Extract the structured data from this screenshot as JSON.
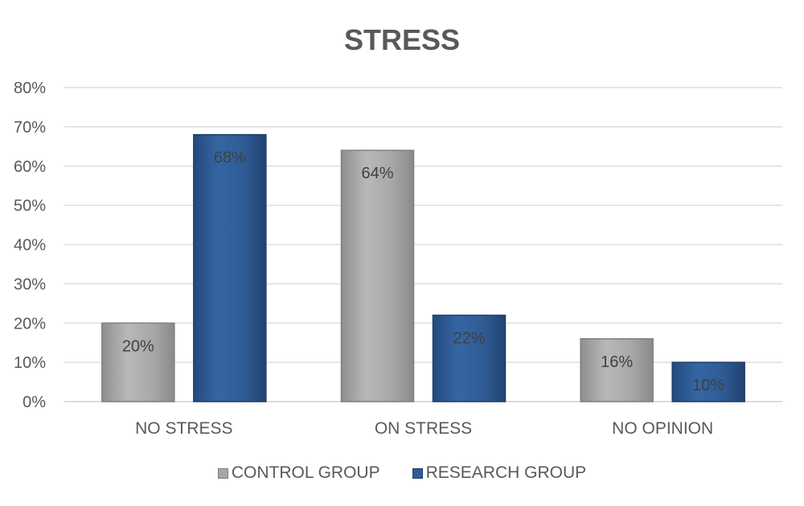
{
  "chart_data": {
    "type": "bar",
    "title": "STRESS",
    "categories": [
      "NO STRESS",
      "ON STRESS",
      "NO OPINION"
    ],
    "series": [
      {
        "name": "CONTROL GROUP",
        "values": [
          20,
          64,
          16
        ],
        "labels": [
          "20%",
          "64%",
          "16%"
        ],
        "color": "#a6a6a6",
        "edge": "#7f7f7f"
      },
      {
        "name": "RESEARCH GROUP",
        "values": [
          68,
          22,
          10
        ],
        "labels": [
          "68%",
          "22%",
          "10%"
        ],
        "color": "#2e5b94",
        "edge": "#1f3f6b"
      }
    ],
    "y_ticks": [
      "0%",
      "10%",
      "20%",
      "30%",
      "40%",
      "50%",
      "60%",
      "70%",
      "80%"
    ],
    "ylim": [
      0,
      80
    ],
    "xlabel": "",
    "ylabel": "",
    "grid": true,
    "legend_position": "bottom"
  }
}
